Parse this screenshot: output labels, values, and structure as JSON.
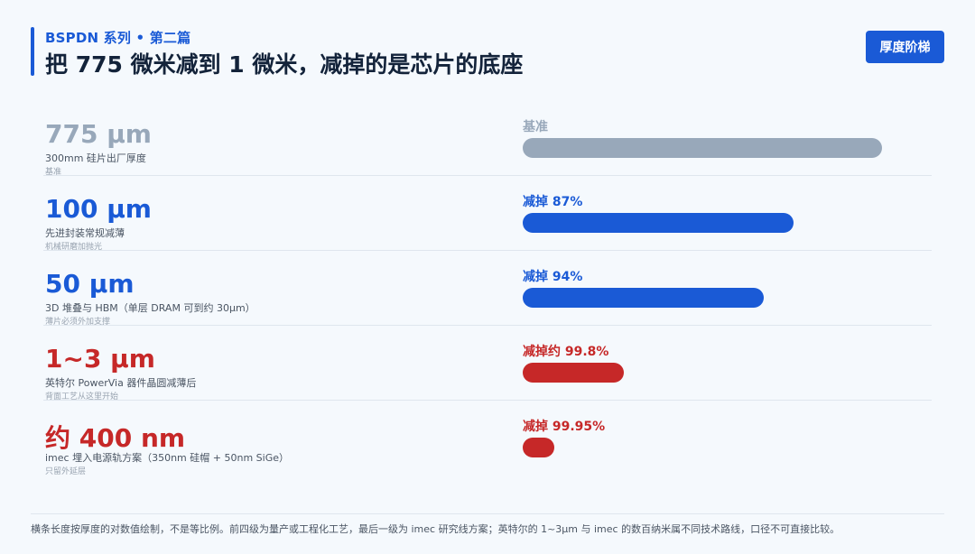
{
  "header": {
    "series": "BSPDN 系列 • 第二篇",
    "title": "把 775 微米减到 1 微米，减掉的是芯片的底座",
    "button_label": "厚度阶梯"
  },
  "colors": {
    "baseline": "#98a8ba",
    "blue": "#1a5ad6",
    "red": "#c62828"
  },
  "rows": [
    {
      "thickness": "775 µm",
      "desc": "300mm 硅片出厂厚度",
      "note": "基准",
      "reduction": "基准",
      "bar_fraction": 1.0,
      "color": "#98a8ba"
    },
    {
      "thickness": "100 µm",
      "desc": "先进封装常规减薄",
      "note": "机械研磨加抛光",
      "reduction": "减掉 87%",
      "bar_fraction": 0.755,
      "color": "#1a5ad6"
    },
    {
      "thickness": "50 µm",
      "desc": "3D 堆叠与 HBM（单层 DRAM 可到约 30µm）",
      "note": "薄片必须外加支撑",
      "reduction": "减掉 94%",
      "bar_fraction": 0.672,
      "color": "#1a5ad6"
    },
    {
      "thickness": "1~3 µm",
      "desc": "英特尔 PowerVia 器件晶圆减薄后",
      "note": "背面工艺从这里开始",
      "reduction": "减掉约 99.8%",
      "bar_fraction": 0.281,
      "color": "#c62828"
    },
    {
      "thickness": "约 400 nm",
      "desc": "imec 埋入电源轨方案（350nm 硅帽 + 50nm SiGe）",
      "note": "只留外延层",
      "reduction": "减掉 99.95%",
      "bar_fraction": 0.088,
      "color": "#c62828"
    }
  ],
  "footnote": "横条长度按厚度的对数值绘制，不是等比例。前四级为量产或工程化工艺，最后一级为 imec 研究线方案；英特尔的 1~3µm 与 imec 的数百纳米属不同技术路线，口径不可直接比较。"
}
